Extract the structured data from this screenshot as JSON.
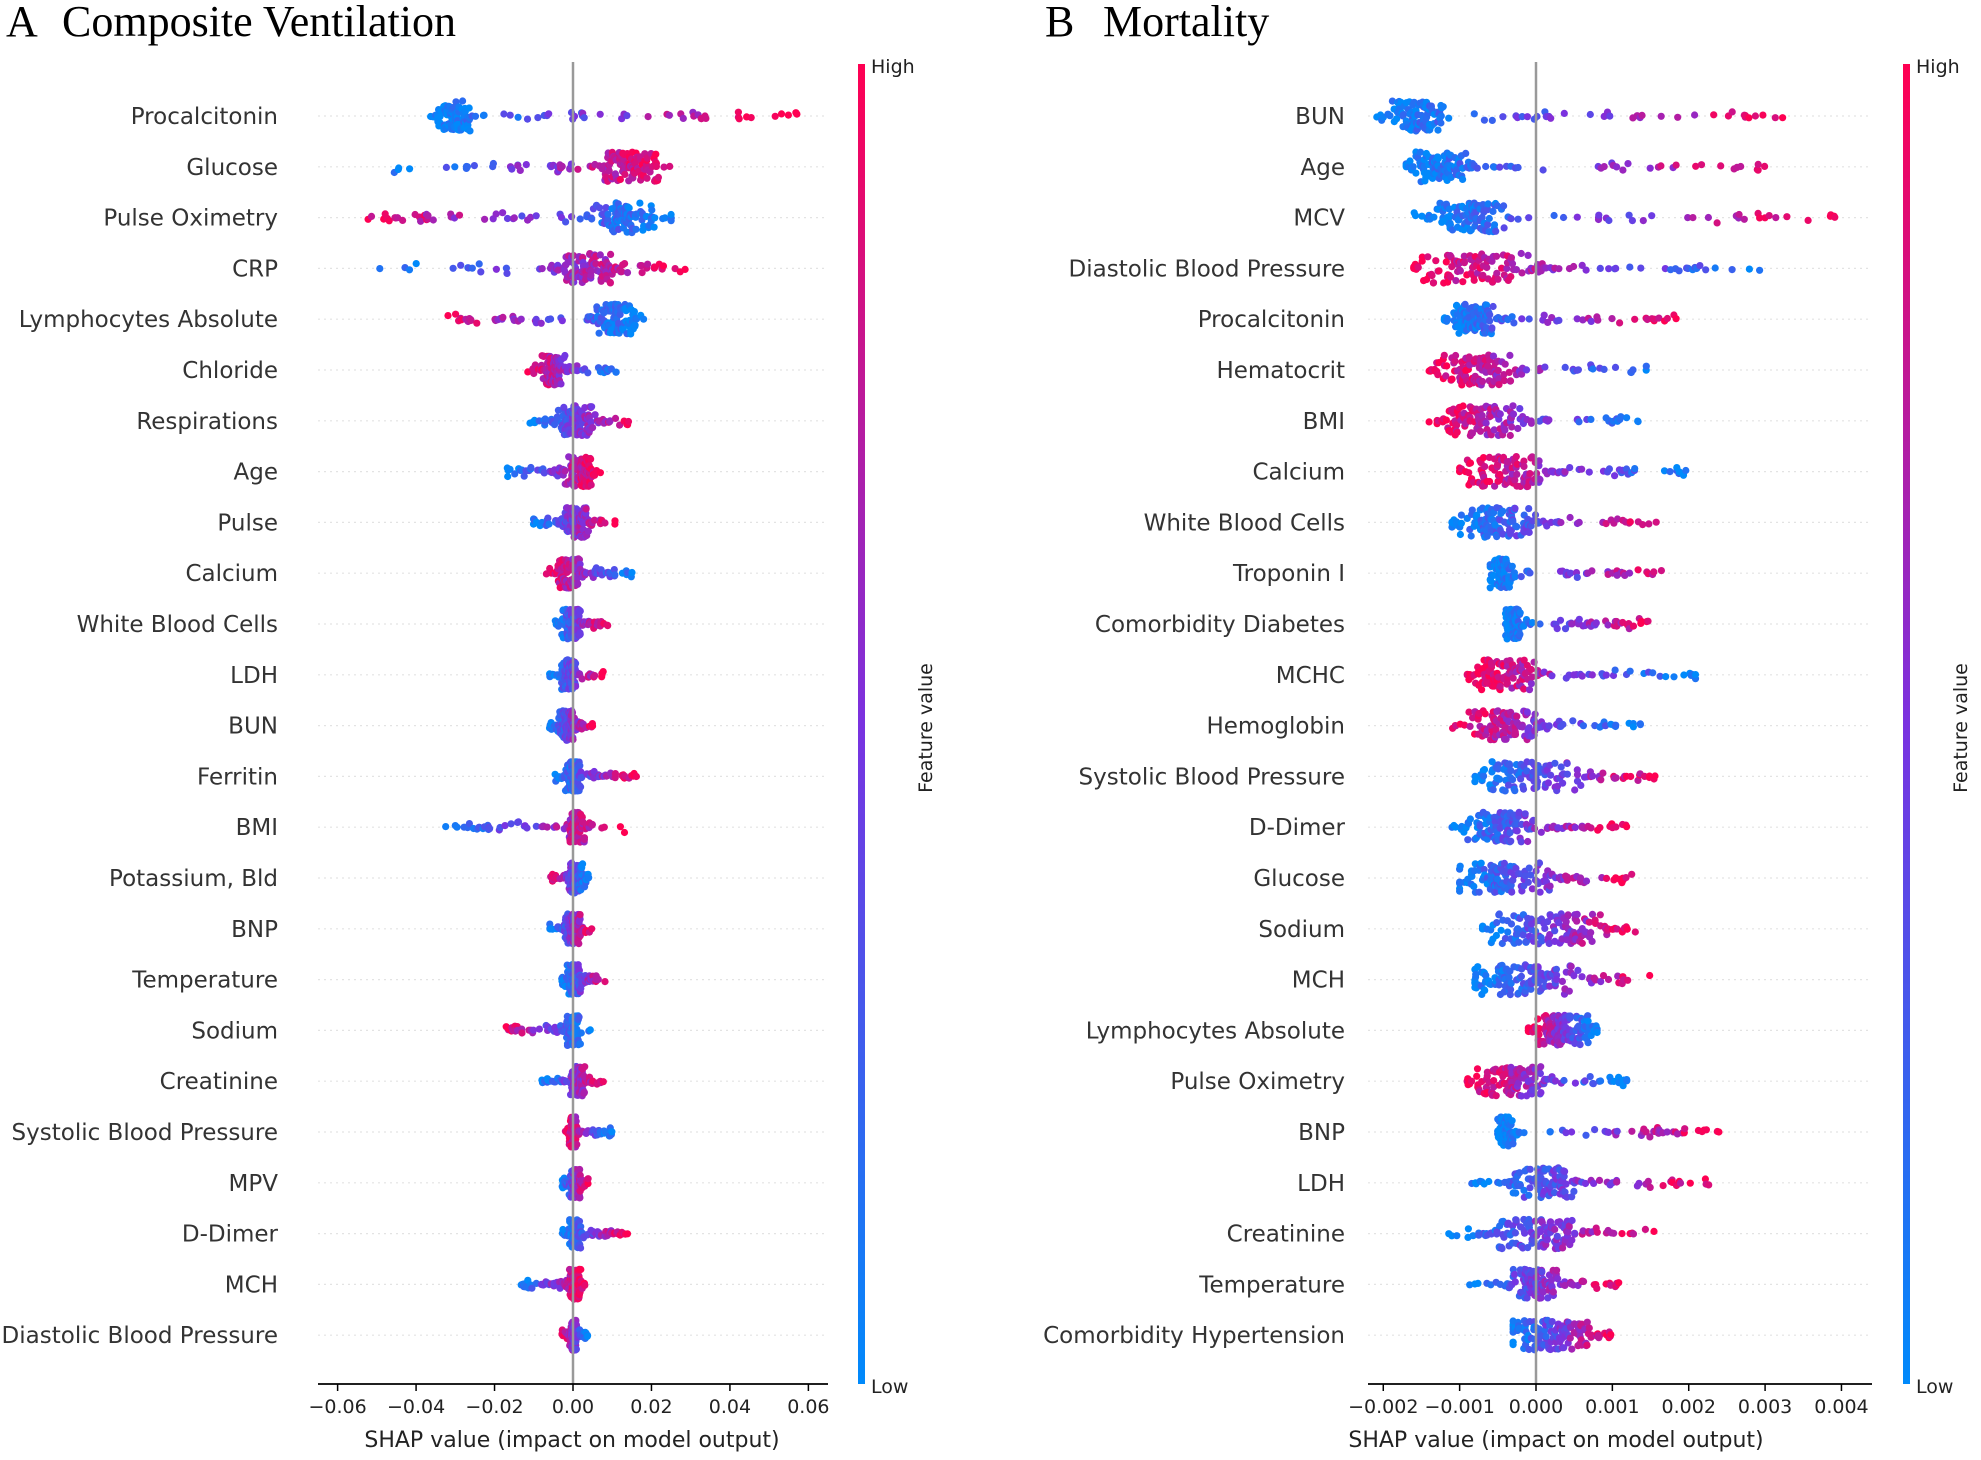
{
  "figure": {
    "colors": {
      "low": "#008afb",
      "mid": "#7a32e0",
      "high": "#ff0052",
      "zero_line": "#999999",
      "row_line": "#e3e3e3"
    }
  },
  "chart_data": [
    {
      "type": "scatter",
      "subtype": "shap-beeswarm",
      "panel_letter": "A",
      "title": "Composite Ventilation",
      "xlabel": "SHAP value (impact on model output)",
      "xlim": [
        -0.065,
        0.065
      ],
      "xticks": [
        -0.06,
        -0.04,
        -0.02,
        0.0,
        0.02,
        0.04,
        0.06
      ],
      "xtick_labels": [
        "−0.06",
        "−0.04",
        "−0.02",
        "0.00",
        "0.02",
        "0.04",
        "0.06"
      ],
      "colorbar": {
        "title": "Feature value",
        "high_label": "High",
        "low_label": "Low"
      },
      "features": [
        {
          "name": "Procalcitonin",
          "range": [
            -0.037,
            0.058
          ],
          "core": [
            -0.035,
            -0.026
          ],
          "high_side": "right"
        },
        {
          "name": "Glucose",
          "range": [
            -0.046,
            0.025
          ],
          "core": [
            0.008,
            0.022
          ],
          "high_side": "right"
        },
        {
          "name": "Pulse Oximetry",
          "range": [
            -0.056,
            0.025
          ],
          "core": [
            0.005,
            0.022
          ],
          "high_side": "left"
        },
        {
          "name": "CRP",
          "range": [
            -0.05,
            0.03
          ],
          "core": [
            -0.002,
            0.01
          ],
          "high_side": "right"
        },
        {
          "name": "Lymphocytes Absolute",
          "range": [
            -0.033,
            0.018
          ],
          "core": [
            0.006,
            0.016
          ],
          "high_side": "left"
        },
        {
          "name": "Chloride",
          "range": [
            -0.012,
            0.012
          ],
          "core": [
            -0.008,
            -0.002
          ],
          "high_side": "left"
        },
        {
          "name": "Respirations",
          "range": [
            -0.011,
            0.015
          ],
          "core": [
            -0.004,
            0.006
          ],
          "high_side": "right"
        },
        {
          "name": "Age",
          "range": [
            -0.017,
            0.007
          ],
          "core": [
            -0.002,
            0.005
          ],
          "high_side": "right"
        },
        {
          "name": "Pulse",
          "range": [
            -0.011,
            0.011
          ],
          "core": [
            -0.002,
            0.004
          ],
          "high_side": "right"
        },
        {
          "name": "Calcium",
          "range": [
            -0.007,
            0.016
          ],
          "core": [
            -0.004,
            0.002
          ],
          "high_side": "left"
        },
        {
          "name": "White Blood Cells",
          "range": [
            -0.005,
            0.009
          ],
          "core": [
            -0.003,
            0.002
          ],
          "high_side": "right"
        },
        {
          "name": "LDH",
          "range": [
            -0.006,
            0.008
          ],
          "core": [
            -0.003,
            0.001
          ],
          "high_side": "right"
        },
        {
          "name": "BUN",
          "range": [
            -0.006,
            0.005
          ],
          "core": [
            -0.004,
            0.001
          ],
          "high_side": "right"
        },
        {
          "name": "Ferritin",
          "range": [
            -0.005,
            0.017
          ],
          "core": [
            -0.002,
            0.002
          ],
          "high_side": "right"
        },
        {
          "name": "BMI",
          "range": [
            -0.034,
            0.014
          ],
          "core": [
            -0.001,
            0.003
          ],
          "high_side": "right"
        },
        {
          "name": "Potassium, Bld",
          "range": [
            -0.006,
            0.004
          ],
          "core": [
            -0.001,
            0.003
          ],
          "high_side": "left"
        },
        {
          "name": "BNP",
          "range": [
            -0.006,
            0.005
          ],
          "core": [
            -0.002,
            0.002
          ],
          "high_side": "right"
        },
        {
          "name": "Temperature",
          "range": [
            -0.003,
            0.009
          ],
          "core": [
            -0.002,
            0.002
          ],
          "high_side": "right"
        },
        {
          "name": "Sodium",
          "range": [
            -0.019,
            0.005
          ],
          "core": [
            -0.002,
            0.002
          ],
          "high_side": "left"
        },
        {
          "name": "Creatinine",
          "range": [
            -0.008,
            0.008
          ],
          "core": [
            -0.001,
            0.003
          ],
          "high_side": "right"
        },
        {
          "name": "Systolic Blood Pressure",
          "range": [
            -0.002,
            0.01
          ],
          "core": [
            -0.001,
            0.001
          ],
          "high_side": "left"
        },
        {
          "name": "MPV",
          "range": [
            -0.003,
            0.004
          ],
          "core": [
            -0.001,
            0.002
          ],
          "high_side": "right"
        },
        {
          "name": "D-Dimer",
          "range": [
            -0.003,
            0.014
          ],
          "core": [
            -0.001,
            0.002
          ],
          "high_side": "right"
        },
        {
          "name": "MCH",
          "range": [
            -0.014,
            0.003
          ],
          "core": [
            -0.001,
            0.002
          ],
          "high_side": "right"
        },
        {
          "name": "Diastolic Blood Pressure",
          "range": [
            -0.003,
            0.004
          ],
          "core": [
            -0.001,
            0.001
          ],
          "high_side": "left"
        }
      ]
    },
    {
      "type": "scatter",
      "subtype": "shap-beeswarm",
      "panel_letter": "B",
      "title": "Mortality",
      "xlabel": "SHAP value (impact on model output)",
      "xlim": [
        -0.0022,
        0.0044
      ],
      "xticks": [
        -0.002,
        -0.001,
        0.0,
        0.001,
        0.002,
        0.003,
        0.004
      ],
      "xtick_labels": [
        "−0.002",
        "−0.001",
        "0.000",
        "0.001",
        "0.002",
        "0.003",
        "0.004"
      ],
      "colorbar": {
        "title": "Feature value",
        "high_label": "High",
        "low_label": "Low"
      },
      "features": [
        {
          "name": "BUN",
          "range": [
            -0.0021,
            0.0033
          ],
          "core": [
            -0.0019,
            -0.0012
          ],
          "high_side": "right"
        },
        {
          "name": "Age",
          "range": [
            -0.0017,
            0.0031
          ],
          "core": [
            -0.0016,
            -0.0009
          ],
          "high_side": "right"
        },
        {
          "name": "MCV",
          "range": [
            -0.0016,
            0.004
          ],
          "core": [
            -0.0013,
            -0.0004
          ],
          "high_side": "right"
        },
        {
          "name": "Diastolic Blood Pressure",
          "range": [
            -0.0016,
            0.0032
          ],
          "core": [
            -0.0015,
            -0.0001
          ],
          "high_side": "left"
        },
        {
          "name": "Procalcitonin",
          "range": [
            -0.0012,
            0.0019
          ],
          "core": [
            -0.0011,
            -0.0005
          ],
          "high_side": "right"
        },
        {
          "name": "Hematocrit",
          "range": [
            -0.0014,
            0.0016
          ],
          "core": [
            -0.0013,
            -0.0003
          ],
          "high_side": "left"
        },
        {
          "name": "BMI",
          "range": [
            -0.0014,
            0.0014
          ],
          "core": [
            -0.0012,
            -0.0002
          ],
          "high_side": "left"
        },
        {
          "name": "Calcium",
          "range": [
            -0.001,
            0.0021
          ],
          "core": [
            -0.0009,
            0.0001
          ],
          "high_side": "left"
        },
        {
          "name": "White Blood Cells",
          "range": [
            -0.0011,
            0.0017
          ],
          "core": [
            -0.001,
            0.0
          ],
          "high_side": "right"
        },
        {
          "name": "Troponin I",
          "range": [
            -0.0006,
            0.0018
          ],
          "core": [
            -0.0006,
            -0.0003
          ],
          "high_side": "right"
        },
        {
          "name": "Comorbidity Diabetes",
          "range": [
            -0.0004,
            0.0015
          ],
          "core": [
            -0.0004,
            -0.0002
          ],
          "high_side": "right"
        },
        {
          "name": "MCHC",
          "range": [
            -0.0009,
            0.0021
          ],
          "core": [
            -0.0008,
            0.0
          ],
          "high_side": "left"
        },
        {
          "name": "Hemoglobin",
          "range": [
            -0.0011,
            0.0014
          ],
          "core": [
            -0.0009,
            0.0
          ],
          "high_side": "left"
        },
        {
          "name": "Systolic Blood Pressure",
          "range": [
            -0.0008,
            0.0016
          ],
          "core": [
            -0.0007,
            0.0006
          ],
          "high_side": "right"
        },
        {
          "name": "D-Dimer",
          "range": [
            -0.0011,
            0.0012
          ],
          "core": [
            -0.0009,
            0.0
          ],
          "high_side": "right"
        },
        {
          "name": "Glucose",
          "range": [
            -0.001,
            0.0013
          ],
          "core": [
            -0.001,
            0.0002
          ],
          "high_side": "right"
        },
        {
          "name": "Sodium",
          "range": [
            -0.0007,
            0.0013
          ],
          "core": [
            -0.0006,
            0.0009
          ],
          "high_side": "right"
        },
        {
          "name": "MCH",
          "range": [
            -0.0008,
            0.0016
          ],
          "core": [
            -0.0008,
            0.0006
          ],
          "high_side": "right"
        },
        {
          "name": "Lymphocytes Absolute",
          "range": [
            -0.0001,
            0.0008
          ],
          "core": [
            0.0,
            0.0007
          ],
          "high_side": "left"
        },
        {
          "name": "Pulse Oximetry",
          "range": [
            -0.0009,
            0.0012
          ],
          "core": [
            -0.0008,
            0.0001
          ],
          "high_side": "left"
        },
        {
          "name": "BNP",
          "range": [
            -0.0005,
            0.0024
          ],
          "core": [
            -0.0005,
            -0.0003
          ],
          "high_side": "right"
        },
        {
          "name": "LDH",
          "range": [
            -0.001,
            0.0023
          ],
          "core": [
            -0.0003,
            0.0005
          ],
          "high_side": "right"
        },
        {
          "name": "Creatinine",
          "range": [
            -0.0012,
            0.0016
          ],
          "core": [
            -0.0005,
            0.0005
          ],
          "high_side": "right"
        },
        {
          "name": "Temperature",
          "range": [
            -0.0009,
            0.0011
          ],
          "core": [
            -0.0003,
            0.0003
          ],
          "high_side": "right"
        },
        {
          "name": "Comorbidity Hypertension",
          "range": [
            -0.0003,
            0.001
          ],
          "core": [
            -0.0003,
            0.0007
          ],
          "high_side": "right"
        }
      ]
    }
  ]
}
